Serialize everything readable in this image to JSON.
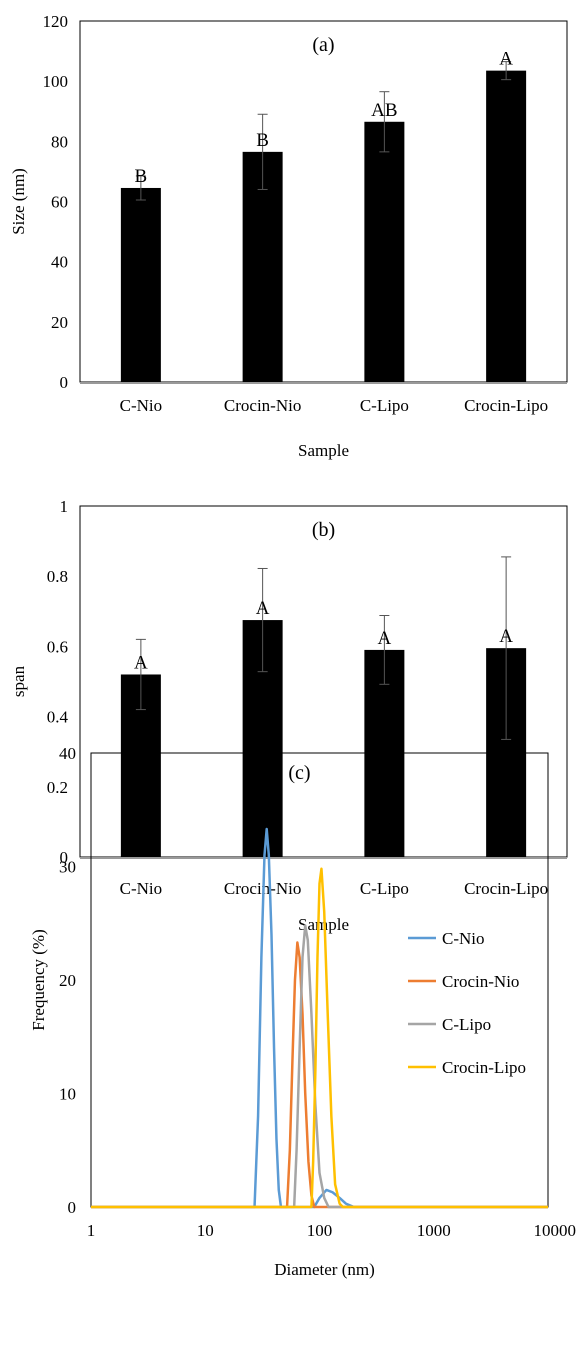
{
  "chart_data": [
    {
      "type": "bar",
      "panel_label": "(a)",
      "categories": [
        "C-Nio",
        "Crocin-Nio",
        "C-Lipo",
        "Crocin-Lipo"
      ],
      "values": [
        64.5,
        76.5,
        86.5,
        103.5
      ],
      "errors": [
        4,
        12.5,
        10,
        3
      ],
      "significance": [
        "B",
        "B",
        "AB",
        "A"
      ],
      "xlabel": "Sample",
      "ylabel": "Size (nm)",
      "ylim": [
        0,
        120
      ],
      "yticks": [
        "0",
        "20",
        "40",
        "60",
        "80",
        "100",
        "120"
      ],
      "grid": false,
      "bar_color": "#000000"
    },
    {
      "type": "bar",
      "panel_label": "(b)",
      "categories": [
        "C-Nio",
        "Crocin-Nio",
        "C-Lipo",
        "Crocin-Lipo"
      ],
      "values": [
        0.52,
        0.675,
        0.59,
        0.595
      ],
      "errors": [
        0.1,
        0.147,
        0.098,
        0.26
      ],
      "significance": [
        "A",
        "A",
        "A",
        "A"
      ],
      "xlabel": "Sample",
      "ylabel": "span",
      "ylim": [
        0,
        1
      ],
      "yticks": [
        "0",
        "0.2",
        "0.4",
        "0.6",
        "0.8",
        "1"
      ],
      "grid": false,
      "bar_color": "#000000"
    },
    {
      "type": "line",
      "panel_label": "(c)",
      "xlabel": "Diameter (nm)",
      "ylabel": "Frequency (%)",
      "x_scale": "log",
      "xlim": [
        1,
        10000
      ],
      "ylim": [
        0,
        40
      ],
      "xticks": [
        "1",
        "10",
        "100",
        "1000",
        "10000"
      ],
      "yticks": [
        "0",
        "10",
        "20",
        "30",
        "40"
      ],
      "legend_position": "right",
      "grid": false,
      "series": [
        {
          "name": "C-Nio",
          "color": "#5b9bd5",
          "points": [
            [
              1,
              0
            ],
            [
              27,
              0
            ],
            [
              29,
              8
            ],
            [
              31,
              22
            ],
            [
              33,
              31
            ],
            [
              34.5,
              33.3
            ],
            [
              36,
              31
            ],
            [
              38,
              24
            ],
            [
              40,
              14
            ],
            [
              42,
              6
            ],
            [
              44,
              1.5
            ],
            [
              46,
              0
            ],
            [
              90,
              0
            ],
            [
              100,
              0.8
            ],
            [
              115,
              1.5
            ],
            [
              130,
              1.3
            ],
            [
              150,
              0.8
            ],
            [
              170,
              0.3
            ],
            [
              200,
              0
            ],
            [
              10000,
              0
            ]
          ]
        },
        {
          "name": "Crocin-Nio",
          "color": "#ed7d31",
          "points": [
            [
              1,
              0
            ],
            [
              52,
              0
            ],
            [
              55,
              5
            ],
            [
              58,
              13
            ],
            [
              61,
              20
            ],
            [
              64,
              23.3
            ],
            [
              67,
              22
            ],
            [
              71,
              17
            ],
            [
              75,
              10
            ],
            [
              80,
              4
            ],
            [
              85,
              1
            ],
            [
              90,
              0
            ],
            [
              10000,
              0
            ]
          ]
        },
        {
          "name": "C-Lipo",
          "color": "#a5a5a5",
          "points": [
            [
              1,
              0
            ],
            [
              60,
              0
            ],
            [
              63,
              5
            ],
            [
              67,
              14
            ],
            [
              71,
              22
            ],
            [
              75,
              24.8
            ],
            [
              79,
              23.5
            ],
            [
              85,
              17
            ],
            [
              92,
              9
            ],
            [
              100,
              3
            ],
            [
              110,
              0.8
            ],
            [
              120,
              0
            ],
            [
              10000,
              0
            ]
          ]
        },
        {
          "name": "Crocin-Lipo",
          "color": "#ffc000",
          "points": [
            [
              1,
              0
            ],
            [
              85,
              0
            ],
            [
              88,
              4
            ],
            [
              92,
              12
            ],
            [
              96,
              22
            ],
            [
              100,
              28.5
            ],
            [
              104,
              29.8
            ],
            [
              110,
              26
            ],
            [
              118,
              17
            ],
            [
              127,
              8
            ],
            [
              137,
              2
            ],
            [
              150,
              0.3
            ],
            [
              160,
              0
            ],
            [
              10000,
              0
            ]
          ]
        }
      ]
    }
  ]
}
